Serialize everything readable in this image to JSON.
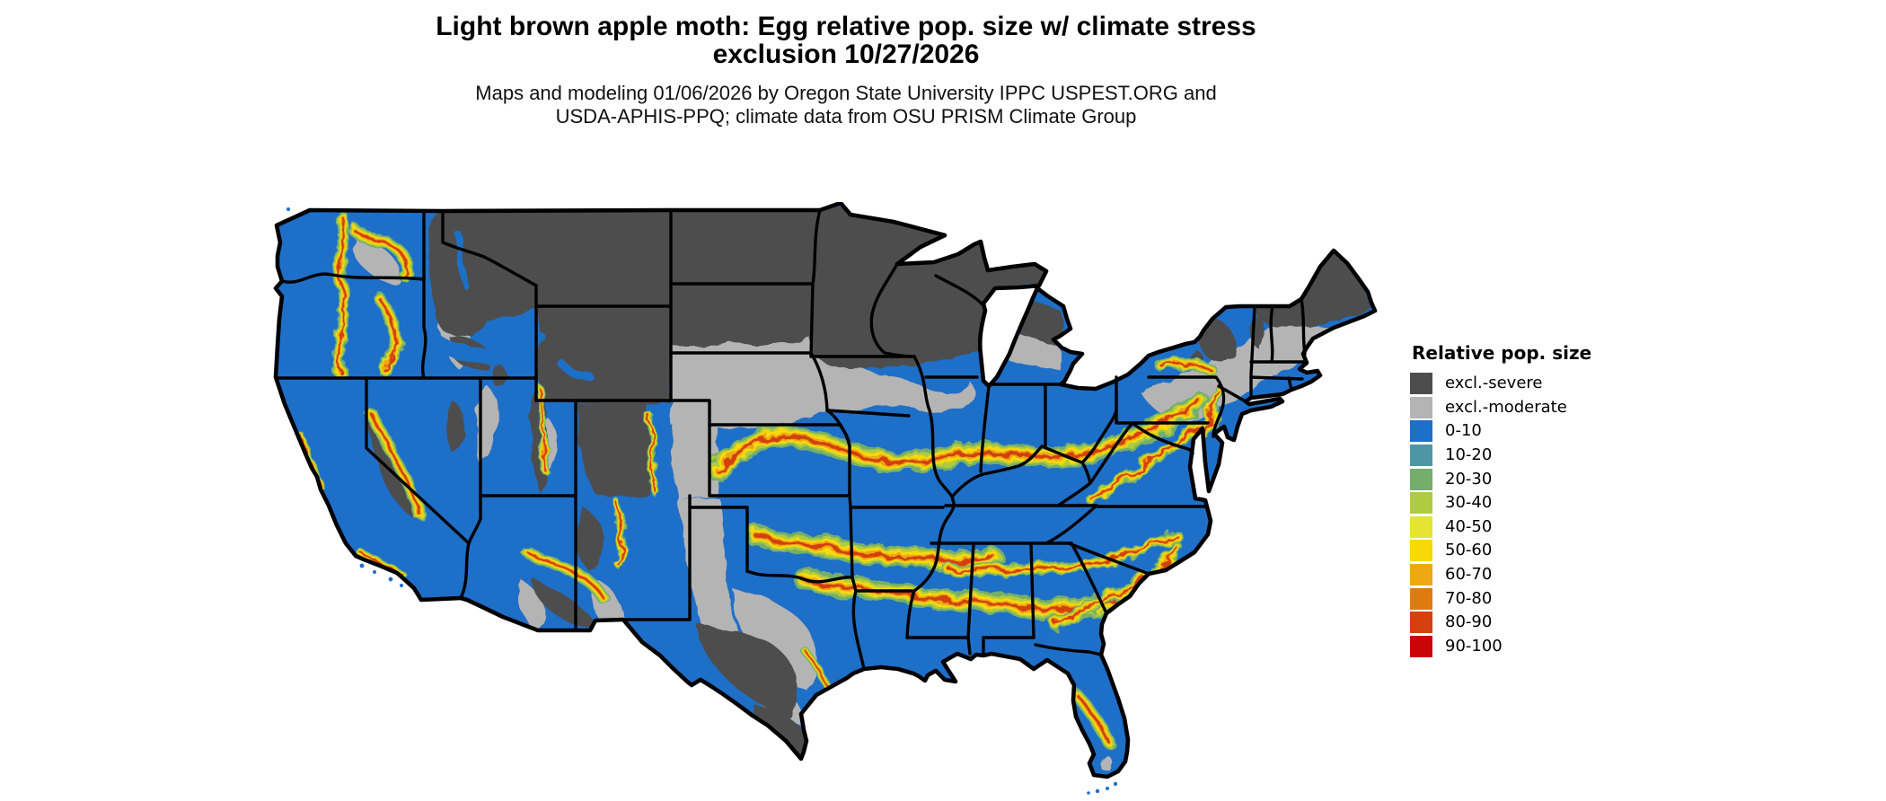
{
  "title": {
    "line1": "Light brown apple moth: Egg relative pop. size w/ climate stress",
    "line2": "exclusion 10/27/2026"
  },
  "subtitle": {
    "line1": "Maps and modeling 01/06/2026 by Oregon State University IPPC USPEST.ORG and",
    "line2": "USDA-APHIS-PPQ; climate data from OSU PRISM Climate Group"
  },
  "legend": {
    "title": "Relative pop. size",
    "items": [
      {
        "label": "excl.-severe",
        "color": "#4D4D4D"
      },
      {
        "label": "excl.-moderate",
        "color": "#B4B4B4"
      },
      {
        "label": "0-10",
        "color": "#1E6FC8"
      },
      {
        "label": "10-20",
        "color": "#4D96A3"
      },
      {
        "label": "20-30",
        "color": "#74AE6A"
      },
      {
        "label": "30-40",
        "color": "#AFCB3F"
      },
      {
        "label": "40-50",
        "color": "#E3E532"
      },
      {
        "label": "50-60",
        "color": "#F7D908"
      },
      {
        "label": "60-70",
        "color": "#EDA813"
      },
      {
        "label": "70-80",
        "color": "#DF7B0E"
      },
      {
        "label": "80-90",
        "color": "#D4400E"
      },
      {
        "label": "90-100",
        "color": "#C90505"
      }
    ]
  },
  "map": {
    "region": "Continental United States",
    "background_color": "#FFFFFF",
    "state_border_color": "#000000",
    "water_color": "#FFFFFF"
  }
}
